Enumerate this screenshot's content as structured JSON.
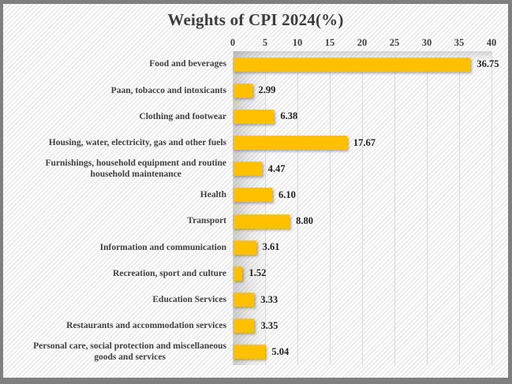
{
  "chart_data": {
    "type": "bar",
    "orientation": "horizontal",
    "title": "Weights of CPI 2024(%)",
    "categories": [
      "Food and beverages",
      "Paan, tobacco and intoxicants",
      "Clothing and footwear",
      "Housing, water, electricity, gas and other fuels",
      "Furnishings, household equipment and routine\nhousehold maintenance",
      "Health",
      "Transport",
      "Information and communication",
      "Recreation, sport and culture",
      "Education Services",
      "Restaurants and accommodation services",
      "Personal care, social protection and miscellaneous\ngoods and services"
    ],
    "values": [
      36.75,
      2.99,
      6.38,
      17.67,
      4.47,
      6.1,
      8.8,
      3.61,
      1.52,
      3.33,
      3.35,
      5.04
    ],
    "value_labels": [
      "36.75",
      "2.99",
      "6.38",
      "17.67",
      "4.47",
      "6.10",
      "8.80",
      "3.61",
      "1.52",
      "3.33",
      "3.35",
      "5.04"
    ],
    "x_ticks": [
      "0",
      "5",
      "10",
      "15",
      "20",
      "25",
      "30",
      "35",
      "40"
    ],
    "xlim": [
      0,
      40
    ],
    "axis_position": "top",
    "grid": true,
    "legend": "none",
    "bar_color": "#FFC000",
    "gridline_color": "#d9d9d9",
    "text_color": "#404040",
    "value_text_color": "#1f1f1f",
    "frame_color": "#7f7f7f"
  }
}
